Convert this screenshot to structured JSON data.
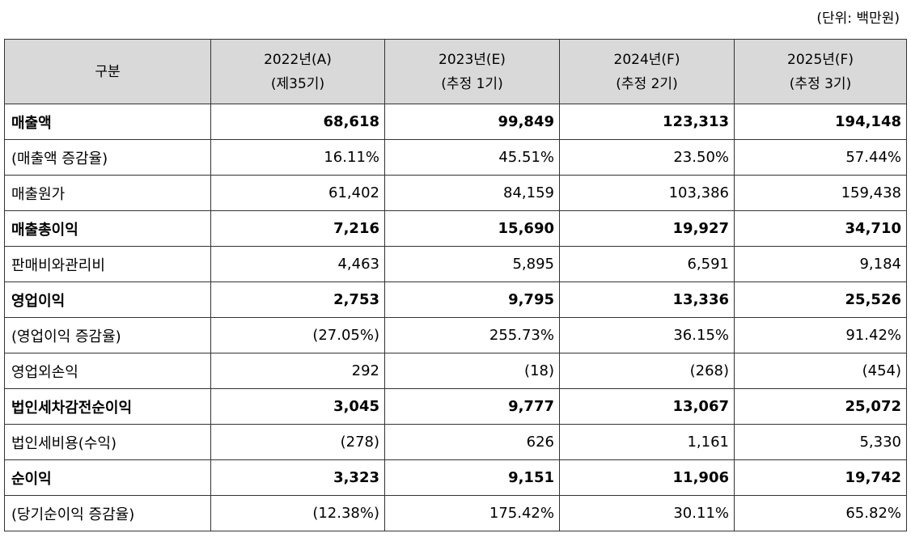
{
  "unit_note": "(단위: 백만원)",
  "header": {
    "category": "구분",
    "columns": [
      {
        "year": "2022년(A)",
        "sub": "(제35기)"
      },
      {
        "year": "2023년(E)",
        "sub": "(추정 1기)"
      },
      {
        "year": "2024년(F)",
        "sub": "(추정 2기)"
      },
      {
        "year": "2025년(F)",
        "sub": "(추정 3기)"
      }
    ]
  },
  "rows": [
    {
      "label": "매출액",
      "bold": true,
      "values": [
        "68,618",
        "99,849",
        "123,313",
        "194,148"
      ]
    },
    {
      "label": "(매출액 증감율)",
      "bold": false,
      "values": [
        "16.11%",
        "45.51%",
        "23.50%",
        "57.44%"
      ]
    },
    {
      "label": "매출원가",
      "bold": false,
      "values": [
        "61,402",
        "84,159",
        "103,386",
        "159,438"
      ]
    },
    {
      "label": "매출총이익",
      "bold": true,
      "values": [
        "7,216",
        "15,690",
        "19,927",
        "34,710"
      ]
    },
    {
      "label": "판매비와관리비",
      "bold": false,
      "values": [
        "4,463",
        "5,895",
        "6,591",
        "9,184"
      ]
    },
    {
      "label": "영업이익",
      "bold": true,
      "values": [
        "2,753",
        "9,795",
        "13,336",
        "25,526"
      ]
    },
    {
      "label": "(영업이익 증감율)",
      "bold": false,
      "values": [
        "(27.05%)",
        "255.73%",
        "36.15%",
        "91.42%"
      ]
    },
    {
      "label": "영업외손익",
      "bold": false,
      "values": [
        "292",
        "(18)",
        "(268)",
        "(454)"
      ]
    },
    {
      "label": "법인세차감전순이익",
      "bold": true,
      "values": [
        "3,045",
        "9,777",
        "13,067",
        "25,072"
      ]
    },
    {
      "label": "법인세비용(수익)",
      "bold": false,
      "values": [
        "(278)",
        "626",
        "1,161",
        "5,330"
      ]
    },
    {
      "label": "순이익",
      "bold": true,
      "values": [
        "3,323",
        "9,151",
        "11,906",
        "19,742"
      ]
    },
    {
      "label": "(당기순이익 증감율)",
      "bold": false,
      "values": [
        "(12.38%)",
        "175.42%",
        "30.11%",
        "65.82%"
      ]
    }
  ]
}
